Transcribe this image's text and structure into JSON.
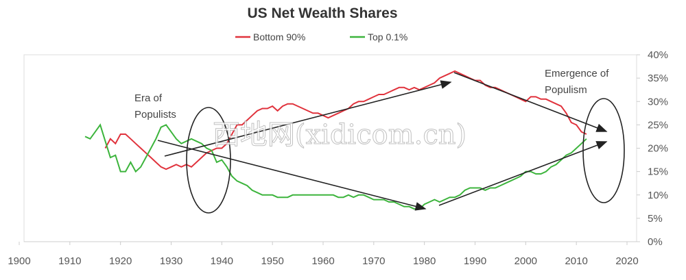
{
  "chart_data": {
    "type": "line",
    "title": "US Net Wealth Shares",
    "x": [
      1913,
      1914,
      1915,
      1916,
      1917,
      1918,
      1919,
      1920,
      1921,
      1922,
      1923,
      1924,
      1925,
      1926,
      1927,
      1928,
      1929,
      1930,
      1931,
      1932,
      1933,
      1934,
      1935,
      1936,
      1937,
      1938,
      1939,
      1940,
      1941,
      1942,
      1943,
      1944,
      1945,
      1946,
      1947,
      1948,
      1949,
      1950,
      1951,
      1952,
      1953,
      1954,
      1955,
      1956,
      1957,
      1958,
      1959,
      1960,
      1961,
      1962,
      1963,
      1964,
      1965,
      1966,
      1967,
      1968,
      1969,
      1970,
      1971,
      1972,
      1973,
      1974,
      1975,
      1976,
      1977,
      1978,
      1979,
      1980,
      1981,
      1982,
      1983,
      1984,
      1985,
      1986,
      1987,
      1988,
      1989,
      1990,
      1991,
      1992,
      1993,
      1994,
      1995,
      1996,
      1997,
      1998,
      1999,
      2000,
      2001,
      2002,
      2003,
      2004,
      2005,
      2006,
      2007,
      2008,
      2009,
      2010,
      2011,
      2012
    ],
    "series": [
      {
        "name": "Bottom 90%",
        "color": "#e0323c",
        "values": [
          null,
          null,
          null,
          null,
          20,
          22,
          21,
          23,
          23,
          22,
          21,
          20,
          19,
          18,
          17,
          16,
          15.5,
          16,
          16.5,
          16,
          16.5,
          16,
          17,
          18,
          19,
          19.5,
          20,
          20,
          21,
          23,
          25,
          25,
          26,
          27,
          28,
          28.5,
          28.5,
          29,
          28,
          29,
          29.5,
          29.5,
          29,
          28.5,
          28,
          27.5,
          27.5,
          27,
          26.5,
          27,
          27.5,
          28,
          28.5,
          29.5,
          30,
          30,
          30.5,
          31,
          31.5,
          31.5,
          32,
          32.5,
          33,
          33,
          32.5,
          33,
          32.5,
          33,
          33.5,
          34,
          35,
          35.5,
          36,
          36.5,
          36,
          35.5,
          35,
          34.5,
          34.5,
          33.5,
          33,
          33,
          32.5,
          32,
          31.5,
          31,
          30.5,
          30,
          31,
          31,
          30.5,
          30.5,
          30,
          29.5,
          29,
          27.5,
          25.5,
          25,
          23.5,
          23
        ]
      },
      {
        "name": "Top 0.1%",
        "color": "#3cb43c",
        "values": [
          22.5,
          22,
          23.5,
          25,
          21.5,
          18,
          18.5,
          15,
          15,
          17,
          15,
          16,
          18,
          20,
          22,
          24.5,
          25,
          23.5,
          22,
          21,
          21.5,
          22,
          21.5,
          21,
          20,
          19.5,
          17,
          17.5,
          16,
          14,
          13,
          12.5,
          12,
          11,
          10.5,
          10,
          10,
          10,
          9.5,
          9.5,
          9.5,
          10,
          10,
          10,
          10,
          10,
          10,
          10,
          10,
          10,
          9.5,
          9.5,
          10,
          9.5,
          10,
          10,
          9.5,
          9,
          9,
          9,
          8.5,
          8.5,
          8,
          7.5,
          7.5,
          7,
          7,
          8,
          8.5,
          9,
          8.5,
          9,
          9.5,
          9.5,
          10,
          11,
          11.5,
          11.5,
          11.5,
          11,
          11.5,
          11.5,
          12,
          12.5,
          13,
          13.5,
          14,
          15,
          15,
          14.5,
          14.5,
          15,
          16,
          16.5,
          17.5,
          18.5,
          19,
          20,
          21,
          22
        ]
      }
    ],
    "xlim": [
      1900,
      2020
    ],
    "xticks": [
      1900,
      1910,
      1920,
      1930,
      1940,
      1950,
      1960,
      1970,
      1980,
      1990,
      2000,
      2010,
      2020
    ],
    "ylim": [
      0,
      40
    ],
    "yticks": [
      {
        "value": 0,
        "label": "0%"
      },
      {
        "value": 5,
        "label": "5%"
      },
      {
        "value": 10,
        "label": "10%"
      },
      {
        "value": 15,
        "label": "15%"
      },
      {
        "value": 20,
        "label": "20%"
      },
      {
        "value": 25,
        "label": "25%"
      },
      {
        "value": 30,
        "label": "30%"
      },
      {
        "value": 35,
        "label": "35%"
      },
      {
        "value": 40,
        "label": "40%"
      }
    ],
    "legend": "top",
    "annotations": [
      {
        "lines": [
          "Era of",
          "Populists"
        ]
      },
      {
        "lines": [
          "Emergence of",
          "Populism"
        ]
      }
    ],
    "watermark": "西地网(xidicom.cn)"
  }
}
